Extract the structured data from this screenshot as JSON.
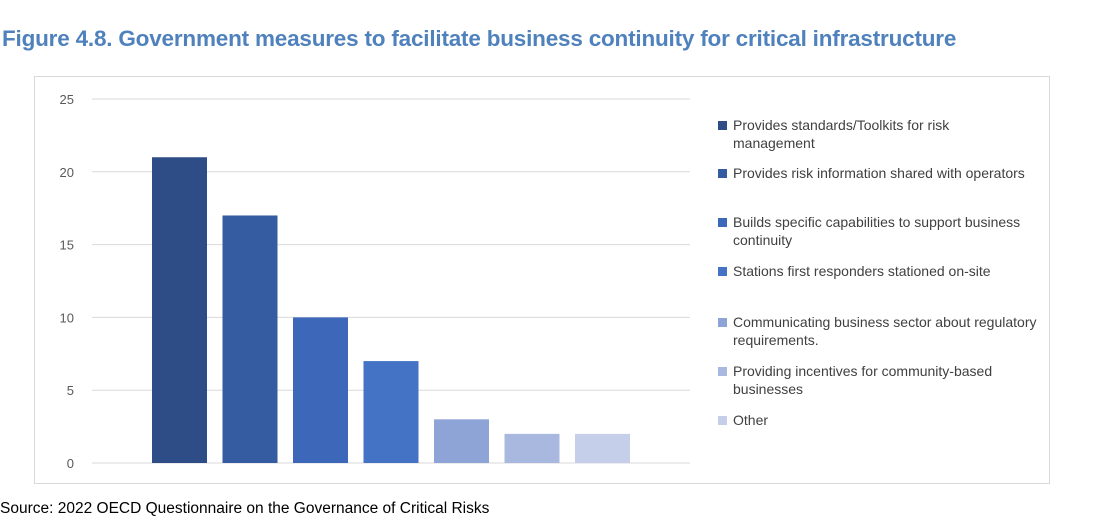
{
  "figure": {
    "title": "Figure 4.8. Government measures to facilitate business continuity for critical infrastructure",
    "source": "Source: 2022 OECD Questionnaire on the Governance of Critical Risks"
  },
  "chart_data": {
    "type": "bar",
    "title": "",
    "xlabel": "",
    "ylabel": "",
    "ylim": [
      0,
      25
    ],
    "yticks": [
      0,
      5,
      10,
      15,
      20,
      25
    ],
    "grid": true,
    "legend_position": "right",
    "series": [
      {
        "name": "Provides standards/Toolkits for risk management",
        "value": 21,
        "color": "#2e4d87"
      },
      {
        "name": "Provides risk information shared with operators",
        "value": 17,
        "color": "#355ba1"
      },
      {
        "name": "Builds specific capabilities to support business continuity",
        "value": 10,
        "color": "#3d68b9"
      },
      {
        "name": "Stations first responders stationed on-site",
        "value": 7,
        "color": "#4472c4"
      },
      {
        "name": "Communicating business sector about regulatory requirements.",
        "value": 3,
        "color": "#8ea4d6"
      },
      {
        "name": "Providing incentives for community-based businesses",
        "value": 2,
        "color": "#a9b8df"
      },
      {
        "name": "Other",
        "value": 2,
        "color": "#c5cfea"
      }
    ]
  }
}
